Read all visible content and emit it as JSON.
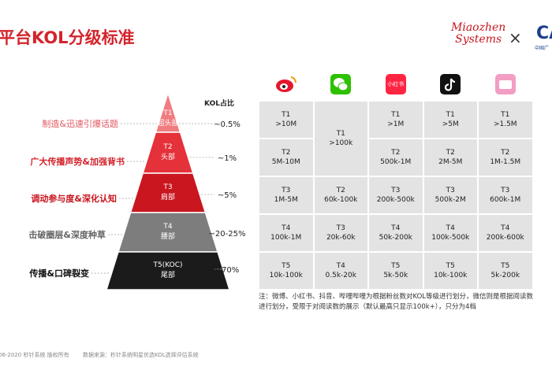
{
  "header": {
    "title": "平台KOL分级标准",
    "logo": {
      "line1": "Miaozhen",
      "line2": "Systems"
    },
    "times": "×",
    "partner": "CA",
    "partner_sub": "中国广"
  },
  "pyramid": {
    "share_header": "KOL占比",
    "levels": [
      {
        "goal": "制造&迅速引爆话题",
        "tier": "T1",
        "name": "超头部",
        "share": "~0.5%"
      },
      {
        "goal": "广大传播声势&加强背书",
        "tier": "T2",
        "name": "头部",
        "share": "~1%"
      },
      {
        "goal": "调动参与度&深化认知",
        "tier": "T3",
        "name": "肩部",
        "share": "~5%"
      },
      {
        "goal": "击破圈层&深度种草",
        "tier": "T4",
        "name": "腰部",
        "share": "~20-25%"
      },
      {
        "goal": "传播&口碑裂变",
        "tier": "T5(KOC)",
        "name": "尾部",
        "share": "~70%"
      }
    ]
  },
  "table": {
    "icon_text": "小红书",
    "columns": [
      {
        "cells": [
          {
            "tier": "T1",
            "range": ">10M"
          },
          {
            "tier": "T2",
            "range": "5M-10M"
          },
          {
            "tier": "T3",
            "range": "1M-5M"
          },
          {
            "tier": "T4",
            "range": "100k-1M"
          },
          {
            "tier": "T5",
            "range": "10k-100k"
          }
        ]
      },
      {
        "cells": [
          {
            "tier": "T1",
            "range": ">100k"
          },
          {
            "tier": "T2",
            "range": "60k-100k"
          },
          {
            "tier": "T3",
            "range": "20k-60k"
          },
          {
            "tier": "T4",
            "range": "0.5k-20k"
          }
        ]
      },
      {
        "cells": [
          {
            "tier": "T1",
            "range": ">1M"
          },
          {
            "tier": "T2",
            "range": "500k-1M"
          },
          {
            "tier": "T3",
            "range": "200k-500k"
          },
          {
            "tier": "T4",
            "range": "50k-200k"
          },
          {
            "tier": "T5",
            "range": "5k-50k"
          }
        ]
      },
      {
        "cells": [
          {
            "tier": "T1",
            "range": ">5M"
          },
          {
            "tier": "T2",
            "range": "2M-5M"
          },
          {
            "tier": "T3",
            "range": "500k-2M"
          },
          {
            "tier": "T4",
            "range": "100k-500k"
          },
          {
            "tier": "T5",
            "range": "10k-100k"
          }
        ]
      },
      {
        "cells": [
          {
            "tier": "T1",
            "range": ">1.5M"
          },
          {
            "tier": "T2",
            "range": "1M-1.5M"
          },
          {
            "tier": "T3",
            "range": "600k-1M"
          },
          {
            "tier": "T4",
            "range": "200k-600k"
          },
          {
            "tier": "T5",
            "range": "5k-200k"
          }
        ]
      }
    ]
  },
  "note": "注：微博、小红书、抖音、哔哩哔哩为根据粉丝数对KOL等级进行划分，微信则是根据阅读数进行划分，受限于对阅读数的展示（默认最高只显示100k+），只分为4档",
  "footer": {
    "copyright": "06-2020 秒针系统 版权所有",
    "source": "数据来源：秒针系统明星优选KOL选择评估系统"
  }
}
